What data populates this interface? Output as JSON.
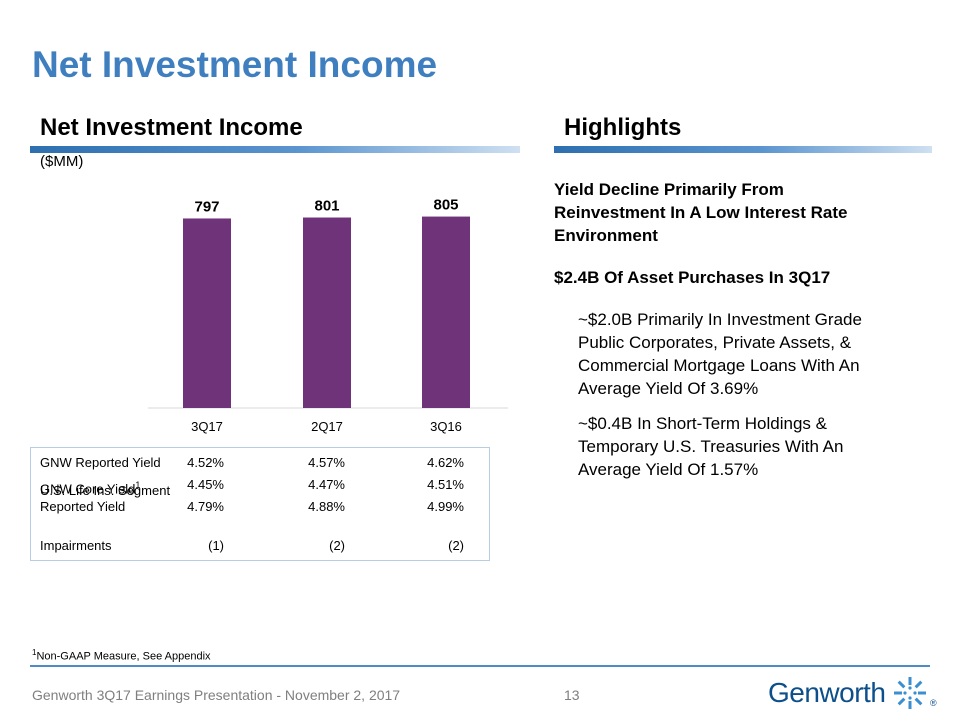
{
  "slide_title": "Net Investment Income",
  "left_section": {
    "heading": "Net Investment Income",
    "units": "($MM)"
  },
  "chart_data": {
    "type": "bar",
    "categories": [
      "3Q17",
      "2Q17",
      "3Q16"
    ],
    "values": [
      797,
      801,
      805
    ],
    "data_labels": [
      "797",
      "801",
      "805"
    ],
    "bar_color": "#6f337a",
    "ylabel": "",
    "xlabel": ""
  },
  "yield_table": {
    "rows": [
      {
        "label_lines": [
          "GNW Reported Yield"
        ],
        "values": [
          "4.52%",
          "4.57%",
          "4.62%"
        ]
      },
      {
        "label_lines": [
          "GNW Core Yield"
        ],
        "sup": "1",
        "values": [
          "4.45%",
          "4.47%",
          "4.51%"
        ]
      },
      {
        "label_lines": [
          "U.S. Life Ins. Segment",
          "Reported Yield"
        ],
        "values": [
          "4.79%",
          "4.88%",
          "4.99%"
        ]
      },
      {
        "label_lines": [
          "Impairments"
        ],
        "values": [
          "(1)",
          "(2)",
          "(2)"
        ]
      }
    ]
  },
  "right_section": {
    "heading": "Highlights",
    "bullet1_lines": [
      "Yield Decline Primarily From",
      "Reinvestment In A Low Interest Rate",
      "Environment"
    ],
    "bullet2": "$2.4B Of Asset Purchases In 3Q17",
    "sub1_lines": [
      "~$2.0B Primarily In Investment Grade",
      "Public Corporates, Private Assets, &",
      "Commercial Mortgage Loans With An",
      "Average Yield Of 3.69%"
    ],
    "sub2_lines": [
      "~$0.4B In Short-Term Holdings &",
      "Temporary U.S. Treasuries With An",
      "Average Yield Of 1.57%"
    ]
  },
  "footnote": {
    "sup": "1",
    "text": "Non-GAAP Measure, See Appendix"
  },
  "footer": {
    "text": "Genworth 3Q17 Earnings Presentation - November 2, 2017",
    "page": "13",
    "logo_text": "Genworth",
    "logo_mark": "®"
  },
  "colors": {
    "title": "#3f7fbf",
    "rule": "#4e8bc7",
    "bar": "#6f337a",
    "logo": "#0d4f8b"
  }
}
